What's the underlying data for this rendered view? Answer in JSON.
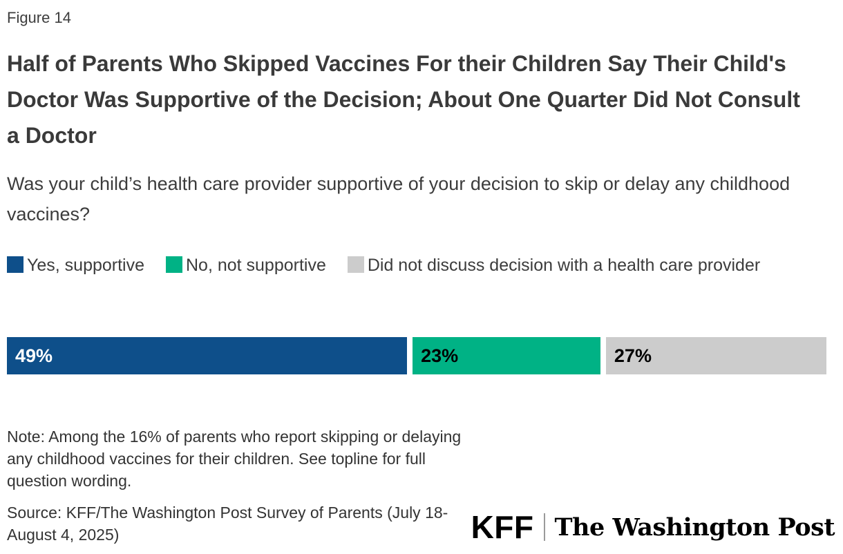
{
  "figure_label": "Figure 14",
  "title": "Half of Parents Who Skipped Vaccines For their Children Say Their Child's Doctor Was Supportive of the Decision; About One Quarter Did Not Consult a Doctor",
  "subtitle": "Was your child’s health care provider supportive of your decision to skip or delay any childhood vaccines?",
  "legend": [
    {
      "label": "Yes, supportive",
      "color": "#0e4f8a"
    },
    {
      "label": "No, not supportive",
      "color": "#00b285"
    },
    {
      "label": "Did not discuss decision with a health care provider",
      "color": "#cccccc"
    }
  ],
  "chart_data": {
    "type": "bar",
    "subtype": "horizontal-stacked-single-row",
    "title": "Half of Parents Who Skipped Vaccines For their Children Say Their Child's Doctor Was Supportive of the Decision; About One Quarter Did Not Consult a Doctor",
    "question": "Was your child’s health care provider supportive of your decision to skip or delay any childhood vaccines?",
    "categories": [
      "Yes, supportive",
      "No, not supportive",
      "Did not discuss decision with a health care provider"
    ],
    "values": [
      49,
      23,
      27
    ],
    "labels": [
      "49%",
      "23%",
      "27%"
    ],
    "colors": [
      "#0e4f8a",
      "#00b285",
      "#cccccc"
    ],
    "label_colors": [
      "#ffffff",
      "#000000",
      "#000000"
    ],
    "unit": "percent",
    "xlim": [
      0,
      100
    ],
    "grid": false,
    "legend_position": "top"
  },
  "note": "Note: Among the 16% of parents who report skipping or delaying any childhood vaccines for their children. See topline for full question wording.",
  "source": "Source: KFF/The Washington Post Survey of Parents (July 18-August 4, 2025)",
  "logos": {
    "kff": "KFF",
    "wapo": "The Washington Post"
  }
}
